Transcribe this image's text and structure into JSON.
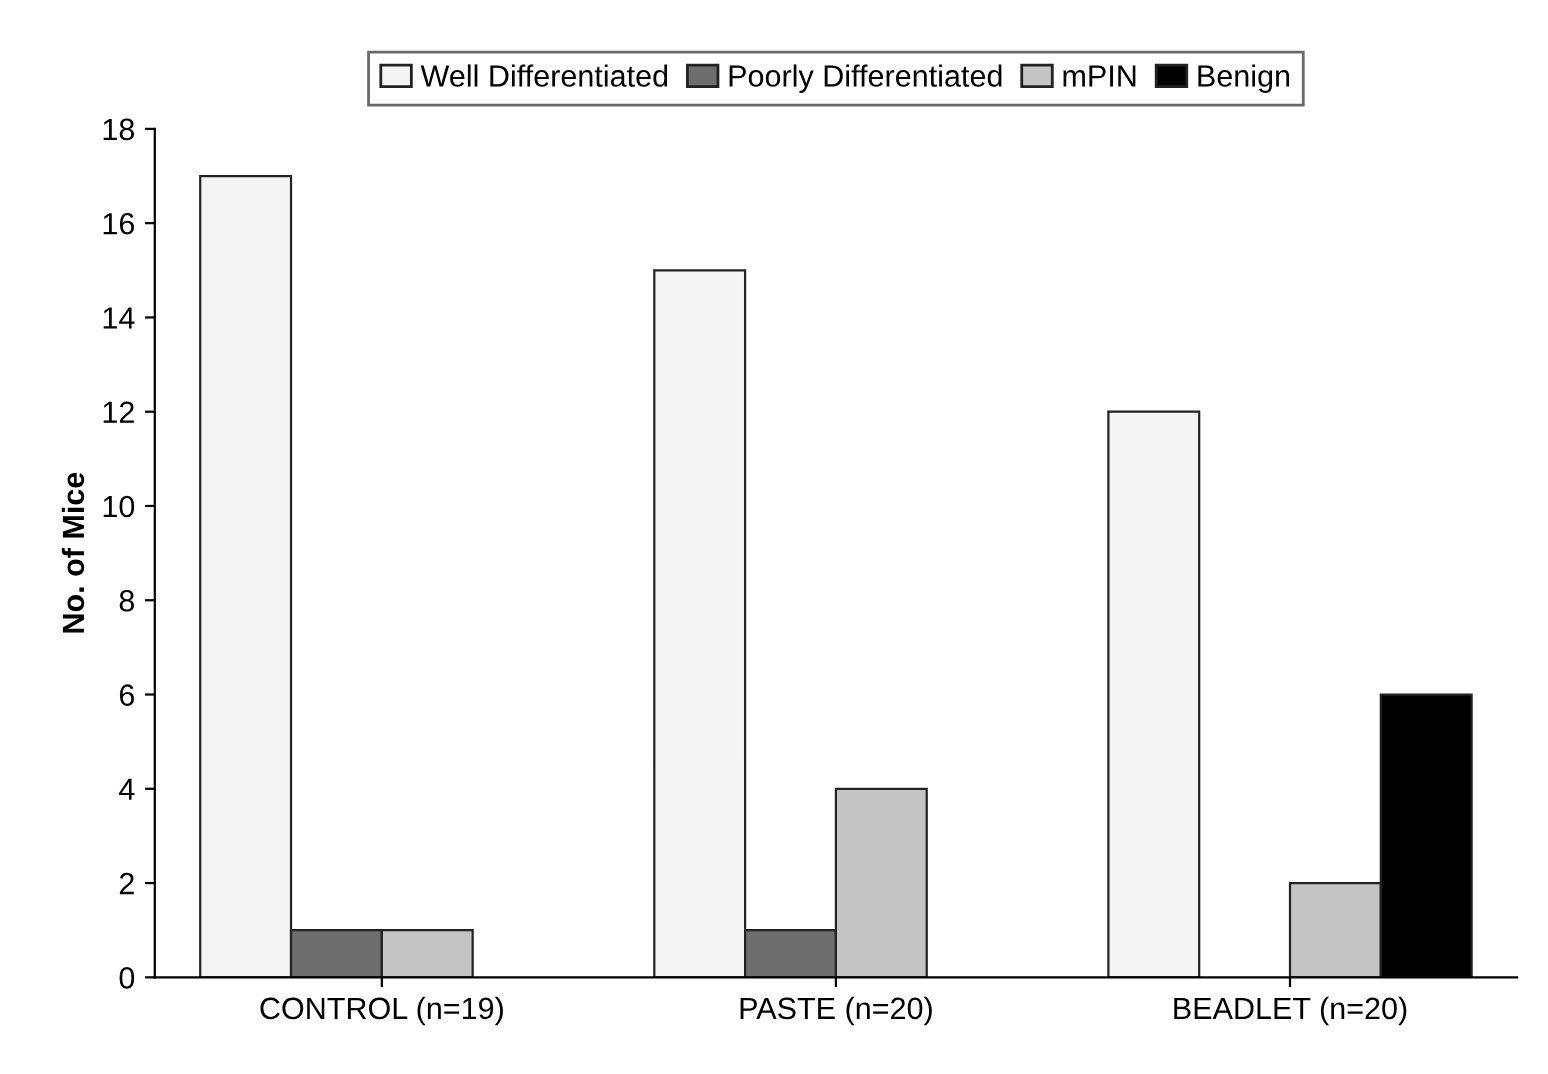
{
  "chart_data": {
    "type": "bar",
    "ylabel": "No. of Mice",
    "categories": [
      "CONTROL (n=19)",
      "PASTE (n=20)",
      "BEADLET (n=20)"
    ],
    "series": [
      {
        "name": "Well Differentiated",
        "color": "#f4f4f4",
        "values": [
          17,
          15,
          12
        ]
      },
      {
        "name": "Poorly Differentiated",
        "color": "#6e6e6e",
        "values": [
          1,
          1,
          null
        ]
      },
      {
        "name": "mPIN",
        "color": "#c4c4c4",
        "values": [
          1,
          4,
          2
        ]
      },
      {
        "name": "Benign",
        "color": "#000000",
        "values": [
          null,
          null,
          6
        ]
      }
    ],
    "ylim": [
      0,
      18
    ],
    "yticks": [
      0,
      2,
      4,
      6,
      8,
      10,
      12,
      14,
      16,
      18
    ],
    "grid": false,
    "legend": "top"
  }
}
